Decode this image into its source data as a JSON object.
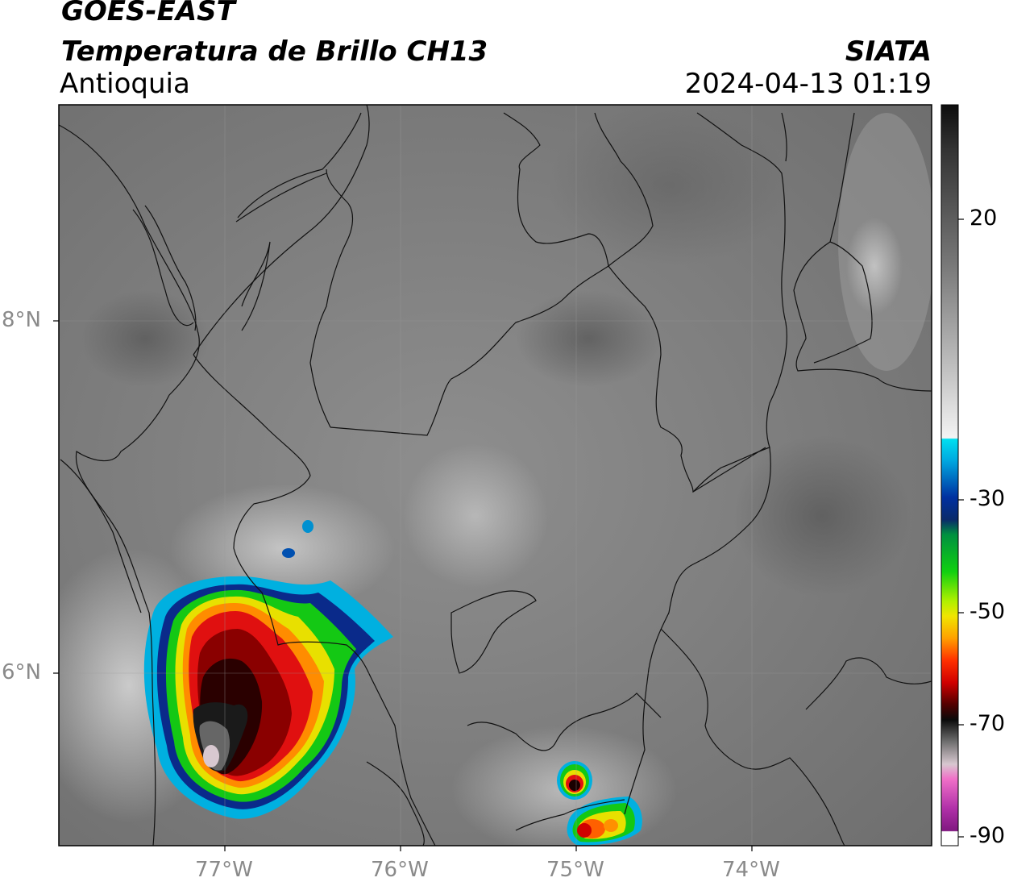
{
  "header": {
    "satellite": "GOES-EAST",
    "product": "Temperatura de Brillo CH13",
    "region": "Antioquia",
    "organization": "SIATA",
    "timestamp": "2024-04-13 01:19"
  },
  "axes": {
    "lat_labels": [
      "8°N",
      "6°N"
    ],
    "lon_labels": [
      "77°W",
      "76°W",
      "75°W",
      "74°W"
    ]
  },
  "colorbar": {
    "ticks": [
      "20",
      "-30",
      "-50",
      "-70",
      "-90"
    ],
    "colors": {
      "warm_gray_top": "#0d0d0d",
      "light": "#f5f5f5",
      "cyan": "#00d8e8",
      "blue": "#0a2a8a",
      "green": "#14c814",
      "yellow": "#f0e600",
      "orange": "#ff8a00",
      "red": "#e01010",
      "dark_red": "#5a0000",
      "black": "#0a0a0a",
      "pink": "#e060c0",
      "purple": "#8a1a8a"
    }
  }
}
